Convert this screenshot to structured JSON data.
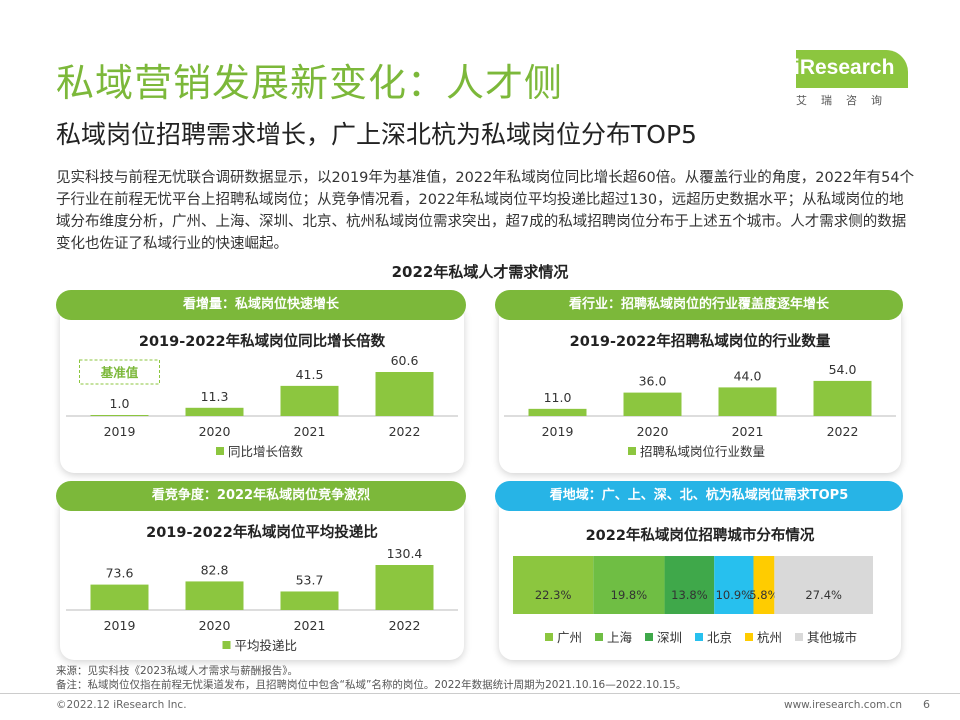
{
  "title": "私域营销发展新变化：人才侧",
  "subtitle": "私域岗位招聘需求增长，广上深北杭为私域岗位分布TOP5",
  "logo": {
    "text": "iResearch",
    "sub": "艾瑞咨询"
  },
  "paragraph": "见实科技与前程无忧联合调研数据显示，以2019年为基准值，2022年私域岗位同比增长超60倍。从覆盖行业的角度，2022年有54个子行业在前程无忧平台上招聘私域岗位；从竞争情况看，2022年私域岗位平均投递比超过130，远超历史数据水平；从私域岗位的地域分布维度分析，广州、上海、深圳、北京、杭州私域岗位需求突出，超7成的私域招聘岗位分布于上述五个城市。人才需求侧的数据变化也佐证了私域行业的快速崛起。",
  "section_title": "2022年私域人才需求情况",
  "colors": {
    "green": "#7cb83a",
    "bar": "#8cc63f",
    "blue": "#27b4e6"
  },
  "panels": {
    "p1": {
      "pill": "看增量：私域岗位快速增长"
    },
    "p2": {
      "pill": "看行业：招聘私域岗位的行业覆盖度逐年增长"
    },
    "p3": {
      "pill": "看竞争度：2022年私域岗位竞争激烈"
    },
    "p4": {
      "pill": "看地域：广、上、深、北、杭为私域岗位需求TOP5"
    }
  },
  "chart_data": [
    {
      "type": "bar",
      "title": "2019-2022年私域岗位同比增长倍数",
      "categories": [
        "2019",
        "2020",
        "2021",
        "2022"
      ],
      "series": [
        {
          "name": "同比增长倍数",
          "values": [
            1.0,
            11.3,
            41.5,
            60.6
          ]
        }
      ],
      "labels": [
        "1.0",
        "11.3",
        "41.5",
        "60.6"
      ],
      "annotation": "基准值",
      "ylim": [
        0,
        60.6
      ]
    },
    {
      "type": "bar",
      "title": "2019-2022年招聘私域岗位的行业数量",
      "categories": [
        "2019",
        "2020",
        "2021",
        "2022"
      ],
      "series": [
        {
          "name": "招聘私域岗位行业数量",
          "values": [
            11.0,
            36.0,
            44.0,
            54.0
          ]
        }
      ],
      "labels": [
        "11.0",
        "36.0",
        "44.0",
        "54.0"
      ],
      "ylim": [
        0,
        60
      ]
    },
    {
      "type": "bar",
      "title": "2019-2022年私域岗位平均投递比",
      "categories": [
        "2019",
        "2020",
        "2021",
        "2022"
      ],
      "series": [
        {
          "name": "平均投递比",
          "values": [
            73.6,
            82.8,
            53.7,
            130.4
          ]
        }
      ],
      "labels": [
        "73.6",
        "82.8",
        "53.7",
        "130.4"
      ],
      "ylim": [
        0,
        130.4
      ]
    },
    {
      "type": "bar",
      "subtype": "stacked-100",
      "title": "2022年私域岗位招聘城市分布情况",
      "series": [
        {
          "name": "广州",
          "value": 22.3,
          "label": "22.3%",
          "color": "#8cc63f"
        },
        {
          "name": "上海",
          "value": 19.8,
          "label": "19.8%",
          "color": "#6fbe44"
        },
        {
          "name": "深圳",
          "value": 13.8,
          "label": "13.8%",
          "color": "#3fa84a"
        },
        {
          "name": "北京",
          "value": 10.9,
          "label": "10.9%",
          "color": "#27c0ee"
        },
        {
          "name": "杭州",
          "value": 5.8,
          "label": "5.8%",
          "color": "#ffcc00"
        },
        {
          "name": "其他城市",
          "value": 27.4,
          "label": "27.4%",
          "color": "#d9d9d9"
        }
      ]
    }
  ],
  "footnotes": {
    "source": "来源：见实科技《2023私域人才需求与薪酬报告》。",
    "note": "备注：私域岗位仅指在前程无忧渠道发布，且招聘岗位中包含“私域”名称的岗位。2022年数据统计周期为2021.10.16—2022.10.15。"
  },
  "footer": {
    "copyright": "©2022.12 iResearch Inc.",
    "website": "www.iresearch.com.cn",
    "page": "6"
  }
}
